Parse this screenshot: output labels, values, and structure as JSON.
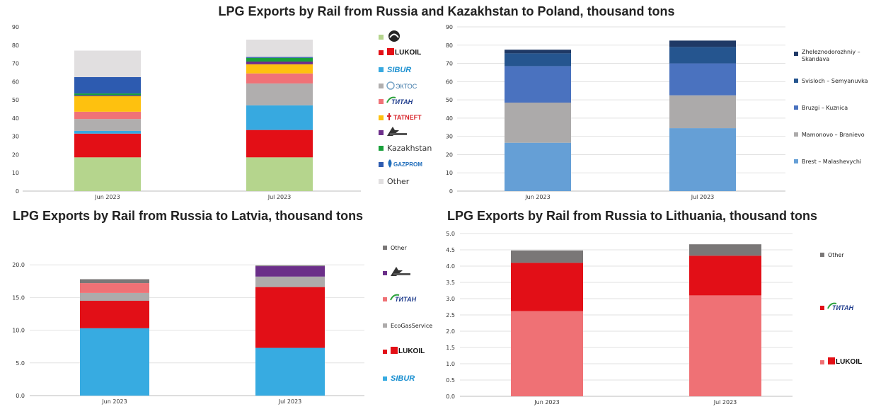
{
  "titles": {
    "main": "LPG Exports by Rail from Russia and Kazakhstan to Poland, thousand tons",
    "latvia": "LPG Exports by Rail from Russia to Latvia, thousand tons",
    "lithuania": "LPG Exports by Rail from Russia to Lithuania, thousand tons"
  },
  "chart_data": [
    {
      "id": "poland_companies",
      "type": "bar",
      "stacked": true,
      "title": "LPG Exports by Rail from Russia and Kazakhstan to Poland, thousand tons",
      "categories": [
        "Jun 2023",
        "Jul 2023"
      ],
      "ylim": [
        0,
        90
      ],
      "yticks": [
        "0",
        "10",
        "20",
        "30",
        "40",
        "50",
        "60",
        "70",
        "80",
        "90"
      ],
      "grid": false,
      "legend_position": "right",
      "series": [
        {
          "name": "",
          "logo": "rosneft-style-logo",
          "color": "#b5d58d",
          "values": [
            18.5,
            18.5
          ]
        },
        {
          "name": "LUKOIL",
          "logo": "lukoil-logo",
          "color": "#e30f16",
          "values": [
            13.0,
            15.0
          ]
        },
        {
          "name": "SIBUR",
          "logo": "sibur-logo",
          "color": "#37a9e0",
          "values": [
            1.5,
            13.5
          ]
        },
        {
          "name": "ЭКТОС",
          "logo": "ektos-logo",
          "color": "#b0aeae",
          "values": [
            6.5,
            12.0
          ]
        },
        {
          "name": "ТИТАН",
          "logo": "titan-logo",
          "color": "#f07277",
          "values": [
            4.0,
            5.5
          ]
        },
        {
          "name": "TATNEFT",
          "logo": "tatneft-logo",
          "color": "#fec10f",
          "values": [
            8.5,
            5.0
          ]
        },
        {
          "name": "",
          "logo": "kinef-style-logo",
          "color": "#6d2f8b",
          "values": [
            0.5,
            1.5
          ]
        },
        {
          "name": "Kazakhstan",
          "color": "#18a03a",
          "values": [
            1.0,
            2.0
          ]
        },
        {
          "name": "GAZPROM",
          "logo": "gazprom-logo",
          "color": "#2d5bb0",
          "values": [
            9.0,
            0.5
          ]
        },
        {
          "name": "Other",
          "color": "#e1dfe0",
          "values": [
            14.5,
            9.5
          ]
        }
      ]
    },
    {
      "id": "poland_crossings",
      "type": "bar",
      "stacked": true,
      "categories": [
        "Jun 2023",
        "Jul 2023"
      ],
      "ylim": [
        0,
        90
      ],
      "yticks": [
        "0",
        "10",
        "20",
        "30",
        "40",
        "50",
        "60",
        "70",
        "80",
        "90"
      ],
      "grid": true,
      "legend_position": "right",
      "series": [
        {
          "name": "Brest – Malashevychi",
          "color": "#659fd6",
          "values": [
            26.5,
            34.5
          ]
        },
        {
          "name": "Mamonovo – Branievo",
          "color": "#acaaaa",
          "values": [
            22.0,
            18.0
          ]
        },
        {
          "name": "Bruzgi – Kuznica",
          "color": "#4a72bf",
          "values": [
            20.0,
            17.5
          ]
        },
        {
          "name": "Svisloch – Semyanuvka",
          "color": "#25558f",
          "values": [
            7.0,
            9.0
          ]
        },
        {
          "name": "Zheleznodorozhniy – Skandava",
          "color": "#1f3966",
          "values": [
            2.0,
            3.5
          ]
        }
      ]
    },
    {
      "id": "latvia",
      "type": "bar",
      "stacked": true,
      "title": "LPG Exports by Rail from Russia to Latvia, thousand tons",
      "categories": [
        "Jun 2023",
        "Jul 2023"
      ],
      "ylim": [
        0,
        25
      ],
      "yticks": [
        "0.0",
        "5.0",
        "10.0",
        "15.0",
        "20.0"
      ],
      "grid": true,
      "legend_position": "right",
      "series": [
        {
          "name": "SIBUR",
          "logo": "sibur-logo",
          "color": "#37abe1",
          "values": [
            10.3,
            7.3
          ]
        },
        {
          "name": "LUKOIL",
          "logo": "lukoil-logo",
          "color": "#e20f17",
          "values": [
            4.2,
            9.3
          ]
        },
        {
          "name": "EcoGasService",
          "color": "#adabab",
          "values": [
            1.2,
            1.6
          ]
        },
        {
          "name": "ТИТАН",
          "logo": "titan-logo",
          "color": "#ef7175",
          "values": [
            1.5,
            0.0
          ]
        },
        {
          "name": "",
          "logo": "kinef-style-logo",
          "color": "#6b2f89",
          "values": [
            0.0,
            1.6
          ]
        },
        {
          "name": "Other",
          "color": "#7a7777",
          "values": [
            0.6,
            0.1
          ]
        }
      ]
    },
    {
      "id": "lithuania",
      "type": "bar",
      "stacked": true,
      "title": "LPG Exports by Rail from Russia to Lithuania, thousand tons",
      "categories": [
        "Jun 2023",
        "Jul 2023"
      ],
      "ylim": [
        0,
        5
      ],
      "yticks": [
        "0.0",
        "0.5",
        "1.0",
        "1.5",
        "2.0",
        "2.5",
        "3.0",
        "3.5",
        "4.0",
        "4.5",
        "5.0"
      ],
      "grid": true,
      "legend_position": "right",
      "series": [
        {
          "name": "LUKOIL",
          "logo": "lukoil-logo",
          "color": "#ef7175",
          "values": [
            2.62,
            3.1
          ]
        },
        {
          "name": "ТИТАН",
          "logo": "titan-logo",
          "color": "#e20f17",
          "values": [
            1.48,
            1.22
          ]
        },
        {
          "name": "Other",
          "color": "#7a7777",
          "values": [
            0.38,
            0.35
          ]
        }
      ]
    }
  ]
}
